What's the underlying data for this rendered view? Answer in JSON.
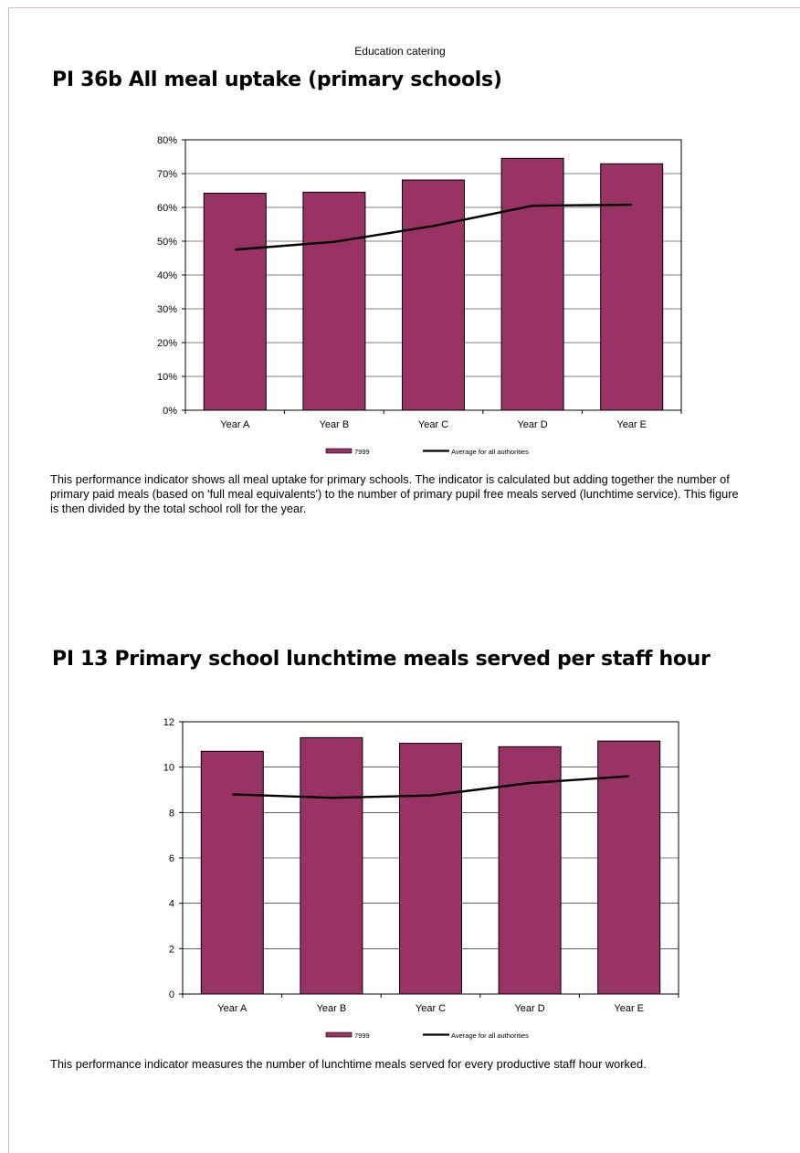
{
  "page": {
    "header": "Education catering"
  },
  "sections": [
    {
      "title": "PI 36b All meal uptake (primary schools)",
      "description": "This performance indicator shows all meal uptake for primary schools.  The indicator is calculated but adding together the number of primary paid meals (based on 'full meal equivalents') to the number of primary pupil free meals served (lunchtime service). This figure is then divided by the total school roll for the year."
    },
    {
      "title": "PI 13  Primary school lunchtime meals served per staff hour",
      "description": "This performance indicator measures the number of lunchtime meals served for every productive staff hour worked."
    }
  ],
  "chart_data": [
    {
      "type": "bar",
      "categories": [
        "Year A",
        "Year B",
        "Year C",
        "Year D",
        "Year E"
      ],
      "series": [
        {
          "name": "7999",
          "type": "bar",
          "color": "#993366",
          "values": [
            64.2,
            64.5,
            68.1,
            74.5,
            72.9
          ]
        },
        {
          "name": "Average for all authorities",
          "type": "line",
          "color": "#000000",
          "values": [
            47.5,
            49.8,
            54.5,
            60.5,
            60.8
          ]
        }
      ],
      "yticks": [
        "0%",
        "10%",
        "20%",
        "30%",
        "40%",
        "50%",
        "60%",
        "70%",
        "80%"
      ],
      "ylim": [
        0,
        80
      ],
      "ystep": 10,
      "grid": true,
      "legend": "bottom"
    },
    {
      "type": "bar",
      "categories": [
        "Year A",
        "Year B",
        "Year C",
        "Year D",
        "Year E"
      ],
      "series": [
        {
          "name": "7999",
          "type": "bar",
          "color": "#993366",
          "values": [
            10.7,
            11.3,
            11.05,
            10.9,
            11.15
          ]
        },
        {
          "name": "Average for all authorities",
          "type": "line",
          "color": "#000000",
          "values": [
            8.8,
            8.65,
            8.75,
            9.3,
            9.6
          ]
        }
      ],
      "yticks": [
        "0",
        "2",
        "4",
        "6",
        "8",
        "10",
        "12"
      ],
      "ylim": [
        0,
        12
      ],
      "ystep": 2,
      "grid": true,
      "legend": "bottom"
    }
  ]
}
